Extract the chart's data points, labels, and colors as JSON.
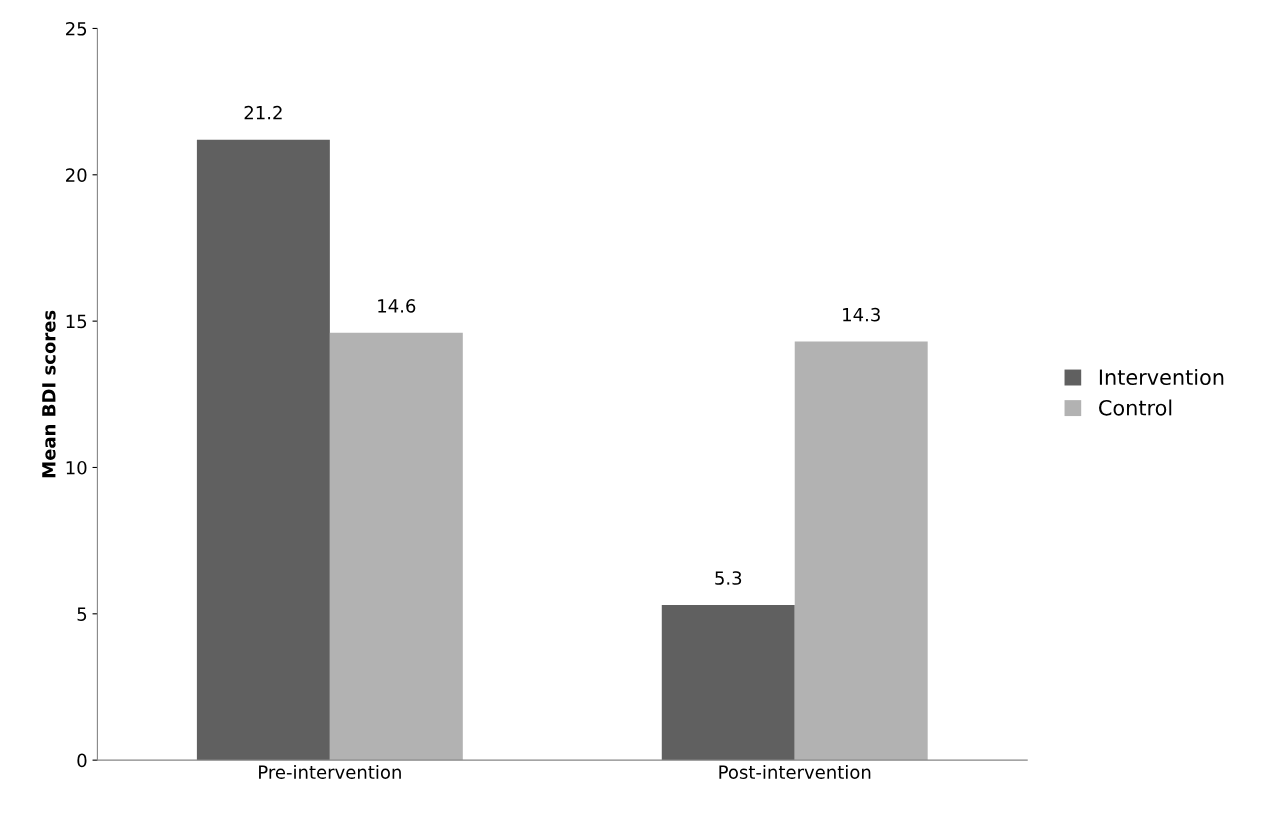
{
  "chart_data": {
    "type": "bar",
    "ylabel": "Mean BDI scores",
    "categories": [
      "Pre-intervention",
      "Post-intervention"
    ],
    "series": [
      {
        "name": "Intervention",
        "color": "#606060",
        "values": [
          21.2,
          5.3
        ]
      },
      {
        "name": "Control",
        "color": "#b2b2b2",
        "values": [
          14.6,
          14.3
        ]
      }
    ],
    "ylim": [
      0,
      25
    ],
    "yticks": [
      0,
      5,
      10,
      15,
      20,
      25
    ],
    "grid": false,
    "legend": "right",
    "data_labels": true
  }
}
